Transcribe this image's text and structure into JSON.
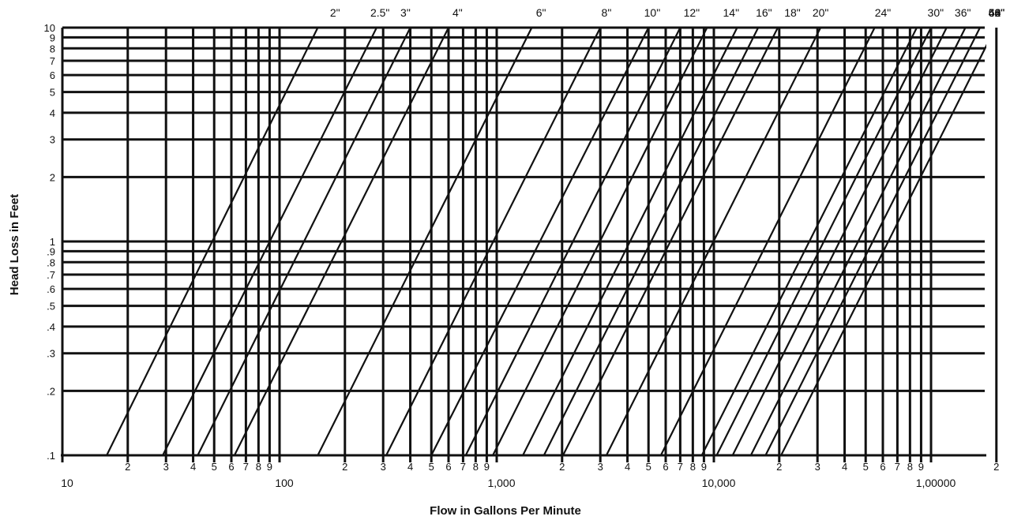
{
  "chart_data": {
    "type": "line",
    "title": "",
    "xlabel": "Flow in Gallons Per Minute",
    "ylabel": "Head Loss in Feet",
    "x_scale": "log",
    "y_scale": "log",
    "xlim": [
      10,
      200000
    ],
    "ylim": [
      0.1,
      10
    ],
    "grid": true,
    "y_ticks": [
      {
        "value": 0.1,
        "label": ".1"
      },
      {
        "value": 0.2,
        "label": ".2"
      },
      {
        "value": 0.3,
        "label": ".3"
      },
      {
        "value": 0.4,
        "label": ".4"
      },
      {
        "value": 0.5,
        "label": ".5"
      },
      {
        "value": 0.6,
        "label": ".6"
      },
      {
        "value": 0.7,
        "label": ".7"
      },
      {
        "value": 0.8,
        "label": ".8"
      },
      {
        "value": 0.9,
        "label": ".9"
      },
      {
        "value": 1,
        "label": "1"
      },
      {
        "value": 2,
        "label": "2"
      },
      {
        "value": 3,
        "label": "3"
      },
      {
        "value": 4,
        "label": "4"
      },
      {
        "value": 5,
        "label": "5"
      },
      {
        "value": 6,
        "label": "6"
      },
      {
        "value": 7,
        "label": "7"
      },
      {
        "value": 8,
        "label": "8"
      },
      {
        "value": 9,
        "label": "9"
      },
      {
        "value": 10,
        "label": "10"
      }
    ],
    "x_major_ticks": [
      {
        "value": 10,
        "label": "10"
      },
      {
        "value": 100,
        "label": "100"
      },
      {
        "value": 1000,
        "label": "1,000"
      },
      {
        "value": 10000,
        "label": "10,000"
      },
      {
        "value": 100000,
        "label": "1,00000"
      }
    ],
    "x_minor_ticks": [
      {
        "value": 20,
        "label": "2"
      },
      {
        "value": 30,
        "label": "3"
      },
      {
        "value": 40,
        "label": "4"
      },
      {
        "value": 50,
        "label": "5"
      },
      {
        "value": 60,
        "label": "6"
      },
      {
        "value": 70,
        "label": "7"
      },
      {
        "value": 80,
        "label": "8"
      },
      {
        "value": 90,
        "label": "9"
      },
      {
        "value": 200,
        "label": "2"
      },
      {
        "value": 300,
        "label": "3"
      },
      {
        "value": 400,
        "label": "4"
      },
      {
        "value": 500,
        "label": "5"
      },
      {
        "value": 600,
        "label": "6"
      },
      {
        "value": 700,
        "label": "7"
      },
      {
        "value": 800,
        "label": "8"
      },
      {
        "value": 900,
        "label": "9"
      },
      {
        "value": 2000,
        "label": "2"
      },
      {
        "value": 3000,
        "label": "3"
      },
      {
        "value": 4000,
        "label": "4"
      },
      {
        "value": 5000,
        "label": "5"
      },
      {
        "value": 6000,
        "label": "6"
      },
      {
        "value": 7000,
        "label": "7"
      },
      {
        "value": 8000,
        "label": "8"
      },
      {
        "value": 9000,
        "label": "9"
      },
      {
        "value": 20000,
        "label": "2"
      },
      {
        "value": 30000,
        "label": "3"
      },
      {
        "value": 40000,
        "label": "4"
      },
      {
        "value": 50000,
        "label": "5"
      },
      {
        "value": 60000,
        "label": "6"
      },
      {
        "value": 70000,
        "label": "7"
      },
      {
        "value": 80000,
        "label": "8"
      },
      {
        "value": 90000,
        "label": "9"
      },
      {
        "value": 200000,
        "label": "2"
      }
    ],
    "series": [
      {
        "name": "2\"",
        "points": [
          [
            16,
            0.1
          ],
          [
            150,
            10
          ]
        ]
      },
      {
        "name": "2.5\"",
        "points": [
          [
            29,
            0.1
          ],
          [
            280,
            10
          ]
        ]
      },
      {
        "name": "3\"",
        "points": [
          [
            42,
            0.1
          ],
          [
            400,
            10
          ]
        ]
      },
      {
        "name": "4\"",
        "points": [
          [
            62,
            0.1
          ],
          [
            600,
            10
          ]
        ]
      },
      {
        "name": "6\"",
        "points": [
          [
            150,
            0.1
          ],
          [
            1450,
            10
          ]
        ]
      },
      {
        "name": "8\"",
        "points": [
          [
            310,
            0.1
          ],
          [
            3000,
            10
          ]
        ]
      },
      {
        "name": "10\"",
        "points": [
          [
            500,
            0.1
          ],
          [
            5000,
            10
          ]
        ]
      },
      {
        "name": "12\"",
        "points": [
          [
            720,
            0.1
          ],
          [
            7000,
            10
          ]
        ]
      },
      {
        "name": "14\"",
        "points": [
          [
            960,
            0.1
          ],
          [
            9300,
            10
          ]
        ]
      },
      {
        "name": "16\"",
        "points": [
          [
            1320,
            0.1
          ],
          [
            12800,
            10
          ]
        ]
      },
      {
        "name": "18\"",
        "points": [
          [
            1650,
            0.1
          ],
          [
            16000,
            10
          ]
        ]
      },
      {
        "name": "20\"",
        "points": [
          [
            2020,
            0.1
          ],
          [
            19700,
            10
          ]
        ]
      },
      {
        "name": "24\"",
        "points": [
          [
            3200,
            0.1
          ],
          [
            31000,
            10
          ]
        ]
      },
      {
        "name": "30\"",
        "points": [
          [
            5700,
            0.1
          ],
          [
            55000,
            10
          ]
        ]
      },
      {
        "name": "36\"",
        "points": [
          [
            8800,
            0.1
          ],
          [
            86000,
            10
          ]
        ]
      },
      {
        "name": "42\"",
        "points": [
          [
            10300,
            0.1
          ],
          [
            100000,
            10
          ]
        ]
      },
      {
        "name": "48\"",
        "points": [
          [
            12200,
            0.1
          ],
          [
            118000,
            10
          ]
        ]
      },
      {
        "name": "54\"",
        "points": [
          [
            14800,
            0.1
          ],
          [
            144000,
            10
          ]
        ]
      },
      {
        "name": "60\"",
        "points": [
          [
            17300,
            0.1
          ],
          [
            168000,
            10
          ]
        ]
      },
      {
        "name": "66\"",
        "points": [
          [
            20400,
            0.1
          ],
          [
            198000,
            10
          ]
        ]
      }
    ],
    "series_labels": [
      {
        "name": "2\"",
        "at": 180
      },
      {
        "name": "2.5\"",
        "at": 290
      },
      {
        "name": "3\"",
        "at": 380
      },
      {
        "name": "4\"",
        "at": 660
      },
      {
        "name": "6\"",
        "at": 1600
      },
      {
        "name": "8\"",
        "at": 3200
      },
      {
        "name": "10\"",
        "at": 5200
      },
      {
        "name": "12\"",
        "at": 7900
      },
      {
        "name": "14\"",
        "at": 12000
      },
      {
        "name": "16\"",
        "at": 17000
      },
      {
        "name": "18\"",
        "at": 23000
      },
      {
        "name": "20\"",
        "at": 31000
      },
      {
        "name": "24\"",
        "at": 60000
      },
      {
        "name": "30\"",
        "at": 105000
      },
      {
        "name": "36\"",
        "at": 140000
      },
      {
        "name": "42\"",
        "at": 220000
      },
      {
        "name": "48\"",
        "at": 300000
      },
      {
        "name": "54\"",
        "at": 370000
      },
      {
        "name": "60\"",
        "at": 450000
      },
      {
        "name": "66\"",
        "at": 540000
      }
    ]
  }
}
